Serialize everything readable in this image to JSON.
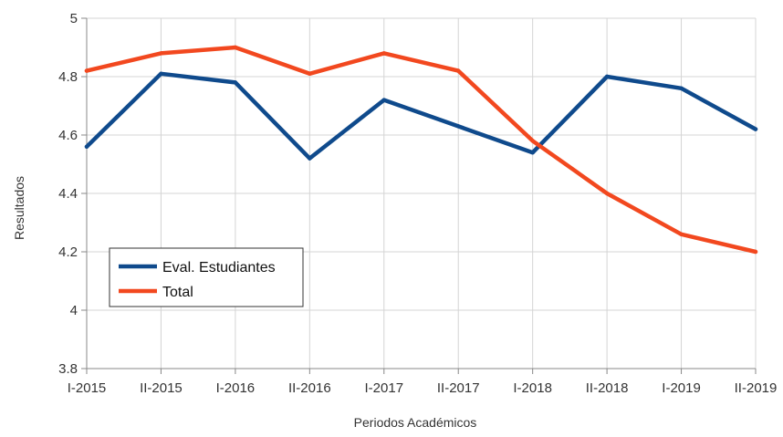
{
  "chart_data": {
    "type": "line",
    "title": "",
    "xlabel": "Periodos Académicos",
    "ylabel": "Resultados",
    "categories": [
      "I-2015",
      "II-2015",
      "I-2016",
      "II-2016",
      "I-2017",
      "II-2017",
      "I-2018",
      "II-2018",
      "I-2019",
      "II-2019"
    ],
    "series": [
      {
        "name": "Eval. Estudiantes",
        "color": "#0f4a8c",
        "values": [
          4.56,
          4.81,
          4.78,
          4.52,
          4.72,
          4.63,
          4.54,
          4.8,
          4.76,
          4.62
        ]
      },
      {
        "name": "Total",
        "color": "#f2481f",
        "values": [
          4.82,
          4.88,
          4.9,
          4.81,
          4.88,
          4.82,
          4.58,
          4.4,
          4.26,
          4.2
        ]
      }
    ],
    "ylim": [
      3.8,
      5
    ],
    "yticks": [
      3.8,
      4,
      4.2,
      4.4,
      4.6,
      4.8,
      5
    ],
    "ytick_labels": [
      "3.8",
      "4",
      "4.2",
      "4.4",
      "4.6",
      "4.8",
      "5"
    ],
    "grid": true,
    "legend_position": "lower-left"
  }
}
